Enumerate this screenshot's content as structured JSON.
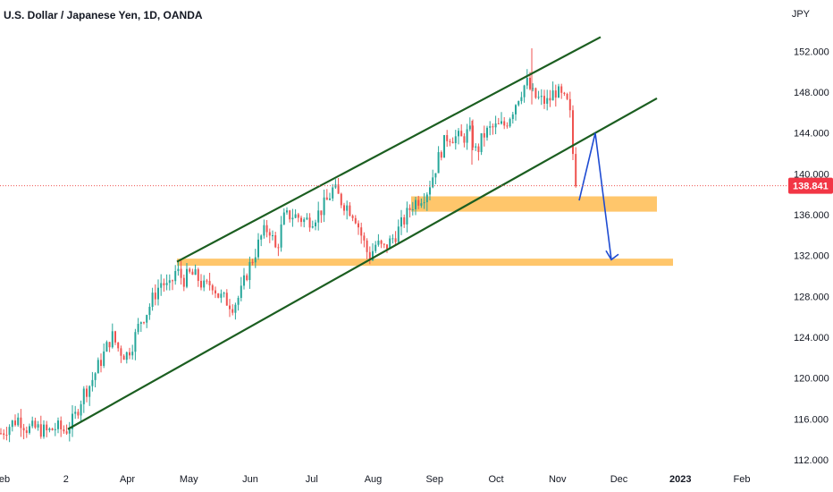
{
  "header": {
    "title": "U.S. Dollar / Japanese Yen, 1D, OANDA",
    "currency": "JPY"
  },
  "chart_data": {
    "type": "candlestick",
    "title": "U.S. Dollar / Japanese Yen, 1D, OANDA",
    "ylabel": "JPY",
    "ylim": [
      110.6,
      154.4
    ],
    "y_ticks": [
      "152.000",
      "148.000",
      "144.000",
      "140.000",
      "136.000",
      "132.000",
      "128.000",
      "124.000",
      "120.000",
      "116.000",
      "112.000"
    ],
    "x_ticks": [
      {
        "label": "eb",
        "bold": false
      },
      {
        "label": "2",
        "bold": false
      },
      {
        "label": "Apr",
        "bold": false
      },
      {
        "label": "May",
        "bold": false
      },
      {
        "label": "Jun",
        "bold": false
      },
      {
        "label": "Jul",
        "bold": false
      },
      {
        "label": "Aug",
        "bold": false
      },
      {
        "label": "Sep",
        "bold": false
      },
      {
        "label": "Oct",
        "bold": false
      },
      {
        "label": "Nov",
        "bold": false
      },
      {
        "label": "Dec",
        "bold": false
      },
      {
        "label": "2023",
        "bold": true
      },
      {
        "label": "Feb",
        "bold": false
      }
    ],
    "last_price": 138.841,
    "last_price_label": "138.841",
    "price_path": [
      {
        "x": 0,
        "y": 114.6
      },
      {
        "x": 10,
        "y": 115.4
      },
      {
        "x": 20,
        "y": 116.1
      },
      {
        "x": 30,
        "y": 115.0
      },
      {
        "x": 40,
        "y": 115.1
      },
      {
        "x": 52,
        "y": 114.7
      },
      {
        "x": 62,
        "y": 115.2
      },
      {
        "x": 72,
        "y": 114.8
      },
      {
        "x": 82,
        "y": 116.0
      },
      {
        "x": 92,
        "y": 118.5
      },
      {
        "x": 100,
        "y": 119.4
      },
      {
        "x": 108,
        "y": 121.0
      },
      {
        "x": 116,
        "y": 122.5
      },
      {
        "x": 124,
        "y": 124.2
      },
      {
        "x": 132,
        "y": 122.8
      },
      {
        "x": 140,
        "y": 122.2
      },
      {
        "x": 148,
        "y": 123.5
      },
      {
        "x": 156,
        "y": 125.6
      },
      {
        "x": 164,
        "y": 126.6
      },
      {
        "x": 172,
        "y": 128.2
      },
      {
        "x": 180,
        "y": 129.5
      },
      {
        "x": 188,
        "y": 128.6
      },
      {
        "x": 196,
        "y": 130.6
      },
      {
        "x": 204,
        "y": 129.6
      },
      {
        "x": 212,
        "y": 130.2
      },
      {
        "x": 220,
        "y": 129.8
      },
      {
        "x": 228,
        "y": 128.8
      },
      {
        "x": 236,
        "y": 129.4
      },
      {
        "x": 244,
        "y": 128.0
      },
      {
        "x": 252,
        "y": 127.6
      },
      {
        "x": 260,
        "y": 127.1
      },
      {
        "x": 268,
        "y": 128.2
      },
      {
        "x": 276,
        "y": 130.5
      },
      {
        "x": 284,
        "y": 132.2
      },
      {
        "x": 292,
        "y": 134.0
      },
      {
        "x": 300,
        "y": 134.8
      },
      {
        "x": 308,
        "y": 132.4
      },
      {
        "x": 316,
        "y": 135.6
      },
      {
        "x": 324,
        "y": 136.0
      },
      {
        "x": 332,
        "y": 135.8
      },
      {
        "x": 340,
        "y": 135.4
      },
      {
        "x": 348,
        "y": 135.6
      },
      {
        "x": 356,
        "y": 136.2
      },
      {
        "x": 364,
        "y": 137.2
      },
      {
        "x": 372,
        "y": 138.6
      },
      {
        "x": 380,
        "y": 137.4
      },
      {
        "x": 388,
        "y": 136.8
      },
      {
        "x": 396,
        "y": 136.0
      },
      {
        "x": 404,
        "y": 133.8
      },
      {
        "x": 412,
        "y": 131.8
      },
      {
        "x": 420,
        "y": 133.2
      },
      {
        "x": 428,
        "y": 132.6
      },
      {
        "x": 436,
        "y": 133.4
      },
      {
        "x": 444,
        "y": 134.4
      },
      {
        "x": 452,
        "y": 135.6
      },
      {
        "x": 460,
        "y": 137.0
      },
      {
        "x": 468,
        "y": 137.6
      },
      {
        "x": 476,
        "y": 138.2
      },
      {
        "x": 484,
        "y": 140.0
      },
      {
        "x": 492,
        "y": 142.2
      },
      {
        "x": 500,
        "y": 143.8
      },
      {
        "x": 508,
        "y": 143.6
      },
      {
        "x": 516,
        "y": 143.4
      },
      {
        "x": 524,
        "y": 144.2
      },
      {
        "x": 532,
        "y": 142.0
      },
      {
        "x": 540,
        "y": 143.8
      },
      {
        "x": 548,
        "y": 144.4
      },
      {
        "x": 556,
        "y": 144.6
      },
      {
        "x": 564,
        "y": 144.8
      },
      {
        "x": 572,
        "y": 146.2
      },
      {
        "x": 580,
        "y": 147.8
      },
      {
        "x": 588,
        "y": 149.0
      },
      {
        "x": 596,
        "y": 147.6
      },
      {
        "x": 604,
        "y": 147.2
      },
      {
        "x": 612,
        "y": 147.0
      },
      {
        "x": 620,
        "y": 148.2
      },
      {
        "x": 628,
        "y": 147.4
      },
      {
        "x": 636,
        "y": 146.6
      },
      {
        "x": 640,
        "y": 142.0
      },
      {
        "x": 644,
        "y": 138.8
      }
    ],
    "trendlines": [
      {
        "name": "channel-upper",
        "color": "#1b5e20",
        "points": [
          {
            "x": 198,
            "y": 131.4
          },
          {
            "x": 672,
            "y": 153.4
          }
        ]
      },
      {
        "name": "channel-lower",
        "color": "#1b5e20",
        "points": [
          {
            "x": 76,
            "y": 115.0
          },
          {
            "x": 735,
            "y": 147.4
          }
        ]
      }
    ],
    "zones": [
      {
        "name": "upper-support-zone",
        "color": "#ffc66b",
        "x_start": 460,
        "x_end": 735,
        "y_low": 136.3,
        "y_high": 137.8
      },
      {
        "name": "lower-support-zone",
        "color": "#ffc66b",
        "x_start": 198,
        "x_end": 753,
        "y_low": 131.0,
        "y_high": 131.7
      }
    ],
    "projection": {
      "color": "#1e4bd2",
      "points": [
        {
          "x": 648,
          "y": 137.4
        },
        {
          "x": 666,
          "y": 144.0
        },
        {
          "x": 684,
          "y": 131.6
        }
      ]
    },
    "colors": {
      "up": "#26a69a",
      "down": "#ef5350",
      "last_price_line": "#ef5350",
      "last_price_tag": "#f23645"
    }
  }
}
